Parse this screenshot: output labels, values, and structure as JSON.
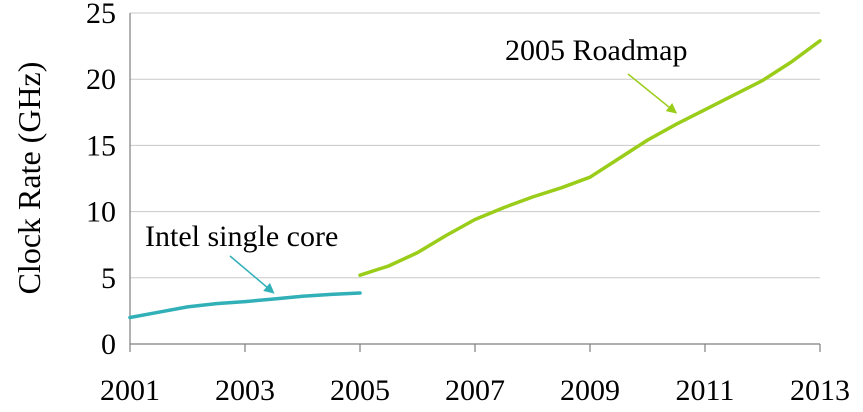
{
  "chart_data": {
    "type": "line",
    "title": "",
    "xlabel": "",
    "ylabel": "Clock Rate (GHz)",
    "xlim": [
      2001,
      2013
    ],
    "ylim": [
      0,
      25
    ],
    "x_ticks": [
      "2001",
      "2003",
      "2005",
      "2007",
      "2009",
      "2011",
      "2013"
    ],
    "y_ticks": [
      "0",
      "5",
      "10",
      "15",
      "20",
      "25"
    ],
    "grid": "horizontal",
    "highlight_gridline": {
      "y": 5,
      "color": "#92d050"
    },
    "series": [
      {
        "name": "Intel single core",
        "color": "#31b0b8",
        "x": [
          2001,
          2001.5,
          2002,
          2002.5,
          2003,
          2003.5,
          2004,
          2004.5,
          2005
        ],
        "y": [
          2.0,
          2.4,
          2.8,
          3.05,
          3.2,
          3.4,
          3.6,
          3.75,
          3.85
        ]
      },
      {
        "name": "2005 Roadmap",
        "color": "#9acd1a",
        "x": [
          2005,
          2005.5,
          2006,
          2006.5,
          2007,
          2007.5,
          2008,
          2008.5,
          2009,
          2009.5,
          2010,
          2010.5,
          2011,
          2011.5,
          2012,
          2012.5,
          2013
        ],
        "y": [
          5.2,
          5.9,
          6.9,
          8.2,
          9.4,
          10.3,
          11.1,
          11.8,
          12.6,
          14.0,
          15.4,
          16.6,
          17.7,
          18.8,
          19.9,
          21.3,
          22.9
        ]
      }
    ],
    "annotations": [
      {
        "text": "Intel single core",
        "series": 0,
        "arrow_to": {
          "x": 2003.5,
          "y": 3.4
        }
      },
      {
        "text": "2005 Roadmap",
        "series": 1,
        "arrow_to": {
          "x": 2010.5,
          "y": 17.0
        }
      }
    ]
  }
}
